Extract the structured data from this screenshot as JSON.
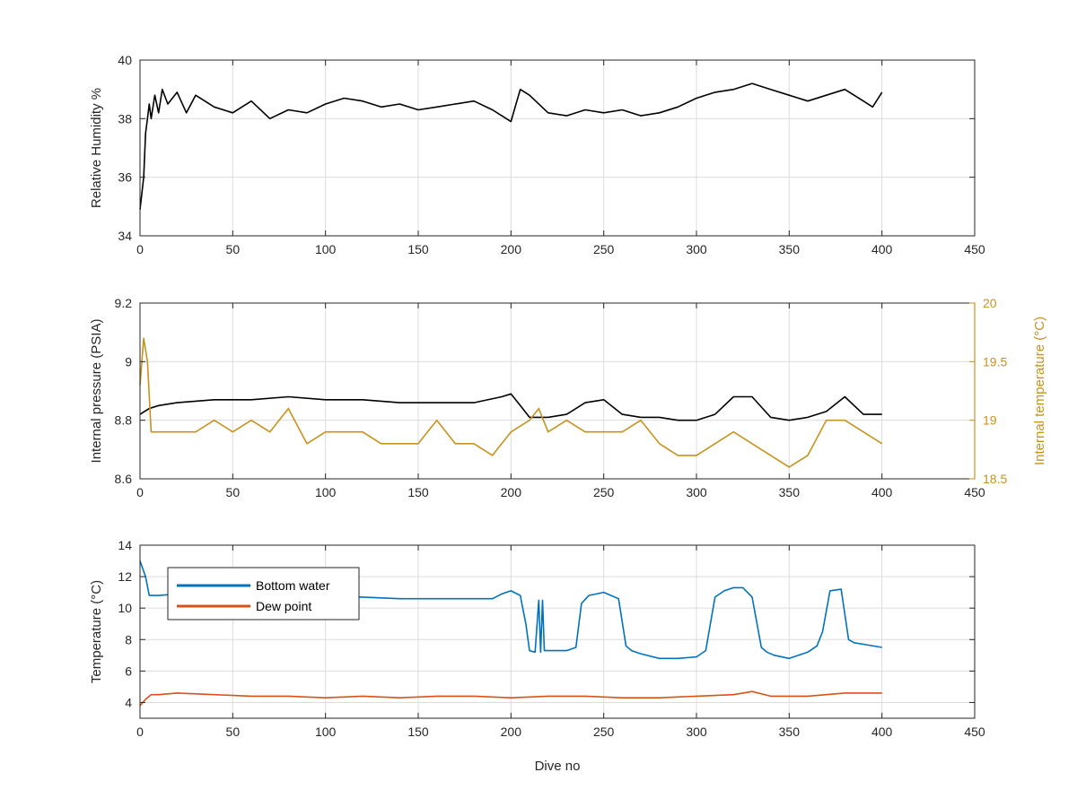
{
  "chart_data": [
    {
      "type": "line",
      "ylabel": "Relative Humidity %",
      "xlim": [
        0,
        450
      ],
      "ylim": [
        34,
        40
      ],
      "xticks": [
        0,
        50,
        100,
        150,
        200,
        250,
        300,
        350,
        400,
        450
      ],
      "yticks": [
        34,
        36,
        38,
        40
      ],
      "grid": true,
      "series": [
        {
          "color": "#000000",
          "x": [
            0,
            2,
            3,
            4,
            5,
            6,
            8,
            10,
            12,
            15,
            20,
            25,
            30,
            40,
            50,
            60,
            70,
            80,
            90,
            100,
            110,
            120,
            130,
            140,
            150,
            160,
            170,
            180,
            190,
            200,
            205,
            210,
            220,
            230,
            240,
            250,
            260,
            270,
            280,
            290,
            300,
            310,
            320,
            330,
            340,
            350,
            360,
            370,
            380,
            390,
            395,
            400
          ],
          "y": [
            34.9,
            36.0,
            37.5,
            38.0,
            38.5,
            38.0,
            38.8,
            38.2,
            39.0,
            38.5,
            38.9,
            38.2,
            38.8,
            38.4,
            38.2,
            38.6,
            38.0,
            38.3,
            38.2,
            38.5,
            38.7,
            38.6,
            38.4,
            38.5,
            38.3,
            38.4,
            38.5,
            38.6,
            38.3,
            37.9,
            39.0,
            38.8,
            38.2,
            38.1,
            38.3,
            38.2,
            38.3,
            38.1,
            38.2,
            38.4,
            38.7,
            38.9,
            39.0,
            39.2,
            39.0,
            38.8,
            38.6,
            38.8,
            39.0,
            38.6,
            38.4,
            38.9
          ]
        }
      ]
    },
    {
      "type": "line",
      "ylabel": "Internal pressure (PSIA)",
      "y2label": "Internal temperature (°C)",
      "xlim": [
        0,
        450
      ],
      "ylim": [
        8.6,
        9.2
      ],
      "y2lim": [
        18.5,
        20
      ],
      "xticks": [
        0,
        50,
        100,
        150,
        200,
        250,
        300,
        350,
        400,
        450
      ],
      "yticks": [
        8.6,
        8.8,
        9.0,
        9.2
      ],
      "y2ticks": [
        18.5,
        19,
        19.5,
        20
      ],
      "yticklabels": [
        "8.6",
        "8.8",
        "9",
        "9.2"
      ],
      "y2ticklabels": [
        "18.5",
        "19",
        "19.5",
        "20"
      ],
      "grid": true,
      "series": [
        {
          "axis": "left",
          "color": "#000000",
          "x": [
            0,
            5,
            10,
            20,
            40,
            60,
            80,
            100,
            120,
            140,
            160,
            180,
            195,
            200,
            205,
            210,
            220,
            230,
            240,
            250,
            260,
            270,
            280,
            290,
            300,
            310,
            320,
            330,
            340,
            350,
            360,
            370,
            380,
            390,
            400
          ],
          "y": [
            8.82,
            8.84,
            8.85,
            8.86,
            8.87,
            8.87,
            8.88,
            8.87,
            8.87,
            8.86,
            8.86,
            8.86,
            8.88,
            8.89,
            8.85,
            8.81,
            8.81,
            8.82,
            8.86,
            8.87,
            8.82,
            8.81,
            8.81,
            8.8,
            8.8,
            8.82,
            8.88,
            8.88,
            8.81,
            8.8,
            8.81,
            8.83,
            8.88,
            8.82,
            8.82
          ]
        },
        {
          "axis": "right",
          "color": "#C8921E",
          "x": [
            0,
            2,
            4,
            6,
            10,
            20,
            30,
            40,
            50,
            60,
            70,
            80,
            90,
            100,
            110,
            120,
            130,
            140,
            150,
            160,
            170,
            180,
            190,
            200,
            210,
            215,
            220,
            230,
            240,
            250,
            260,
            270,
            280,
            290,
            300,
            310,
            320,
            330,
            340,
            350,
            360,
            370,
            380,
            390,
            400
          ],
          "y": [
            19.3,
            19.7,
            19.5,
            18.9,
            18.9,
            18.9,
            18.9,
            19.0,
            18.9,
            19.0,
            18.9,
            19.1,
            18.8,
            18.9,
            18.9,
            18.9,
            18.8,
            18.8,
            18.8,
            19.0,
            18.8,
            18.8,
            18.7,
            18.9,
            19.0,
            19.1,
            18.9,
            19.0,
            18.9,
            18.9,
            18.9,
            19.0,
            18.8,
            18.7,
            18.7,
            18.8,
            18.9,
            18.8,
            18.7,
            18.6,
            18.7,
            19.0,
            19.0,
            18.9,
            18.8
          ]
        }
      ]
    },
    {
      "type": "line",
      "xlabel": "Dive no",
      "ylabel": "Temperature (°C)",
      "xlim": [
        0,
        450
      ],
      "ylim": [
        3,
        14
      ],
      "xticks": [
        0,
        50,
        100,
        150,
        200,
        250,
        300,
        350,
        400,
        450
      ],
      "yticks": [
        4,
        6,
        8,
        10,
        12,
        14
      ],
      "grid": true,
      "legend": "top-left",
      "series": [
        {
          "name": "Bottom water",
          "color": "#0072BD",
          "x": [
            0,
            3,
            5,
            10,
            20,
            40,
            60,
            80,
            100,
            120,
            140,
            160,
            180,
            190,
            195,
            200,
            205,
            208,
            210,
            213,
            215,
            216,
            217,
            218,
            220,
            225,
            230,
            235,
            238,
            242,
            250,
            258,
            262,
            265,
            270,
            280,
            290,
            300,
            305,
            310,
            315,
            320,
            325,
            330,
            335,
            338,
            342,
            350,
            360,
            365,
            368,
            372,
            378,
            382,
            385,
            390,
            400
          ],
          "y": [
            13.0,
            12.0,
            10.8,
            10.8,
            10.9,
            10.8,
            10.8,
            10.7,
            10.7,
            10.7,
            10.6,
            10.6,
            10.6,
            10.6,
            10.9,
            11.1,
            10.8,
            9.0,
            7.3,
            7.2,
            10.5,
            7.2,
            10.5,
            7.3,
            7.3,
            7.3,
            7.3,
            7.5,
            10.3,
            10.8,
            11.0,
            10.6,
            7.6,
            7.3,
            7.1,
            6.8,
            6.8,
            6.9,
            7.3,
            10.7,
            11.1,
            11.3,
            11.3,
            10.7,
            7.5,
            7.2,
            7.0,
            6.8,
            7.2,
            7.6,
            8.5,
            11.1,
            11.2,
            8.0,
            7.8,
            7.7,
            7.5
          ]
        },
        {
          "name": "Dew point",
          "color": "#D95319",
          "x": [
            0,
            3,
            6,
            10,
            20,
            40,
            60,
            80,
            100,
            120,
            140,
            160,
            180,
            200,
            220,
            240,
            260,
            280,
            300,
            320,
            330,
            340,
            360,
            380,
            400
          ],
          "y": [
            3.8,
            4.2,
            4.5,
            4.5,
            4.6,
            4.5,
            4.4,
            4.4,
            4.3,
            4.4,
            4.3,
            4.4,
            4.4,
            4.3,
            4.4,
            4.4,
            4.3,
            4.3,
            4.4,
            4.5,
            4.7,
            4.4,
            4.4,
            4.6,
            4.6
          ]
        }
      ]
    }
  ]
}
